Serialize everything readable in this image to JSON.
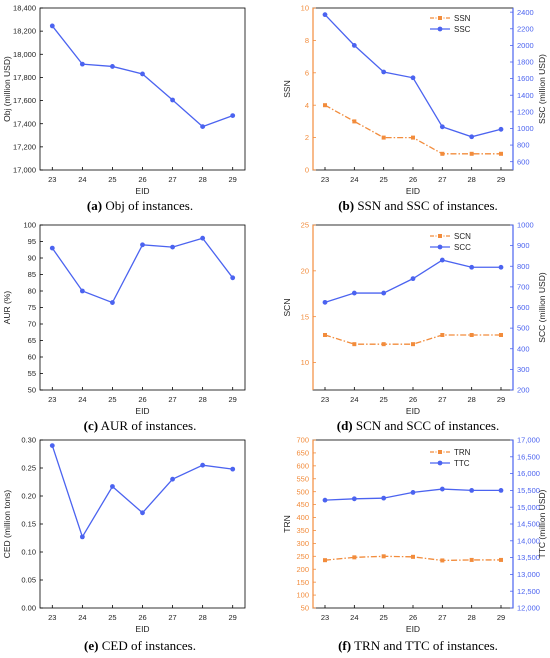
{
  "chart_data": [
    {
      "id": "a",
      "type": "line",
      "caption_label": "(a)",
      "caption_text": " Obj of instances.",
      "xlabel": "EID",
      "ylabel": "Obj (million USD)",
      "x": [
        23,
        24,
        25,
        26,
        27,
        28,
        29
      ],
      "ylim": [
        17000,
        18400
      ],
      "yticks": [
        17000,
        17200,
        17400,
        17600,
        17800,
        18000,
        18200,
        18400
      ],
      "ytick_labels": [
        "17,000",
        "17,200",
        "17,400",
        "17,600",
        "17,800",
        "18,000",
        "18,200",
        "18,400"
      ],
      "series": [
        {
          "axis": "left",
          "color": "#4b63f0",
          "style": "solid",
          "marker": "circle",
          "values": [
            18245,
            17915,
            17895,
            17830,
            17605,
            17375,
            17470
          ]
        }
      ]
    },
    {
      "id": "b",
      "type": "line",
      "caption_label": "(b)",
      "caption_text": " SSN and SSC of instances.",
      "xlabel": "EID",
      "ylabel": "SSN",
      "y2label": "SSC (million USD)",
      "x": [
        23,
        24,
        25,
        26,
        27,
        28,
        29
      ],
      "ylim": [
        0,
        10
      ],
      "yticks": [
        0,
        2,
        4,
        6,
        8,
        10
      ],
      "ytick_labels": [
        "0",
        "2",
        "4",
        "6",
        "8",
        "10"
      ],
      "y2lim": [
        500,
        2450
      ],
      "y2ticks": [
        600,
        800,
        1000,
        1200,
        1400,
        1600,
        1800,
        2000,
        2200,
        2400
      ],
      "y2tick_labels": [
        "600",
        "800",
        "1000",
        "1200",
        "1400",
        "1600",
        "1800",
        "2000",
        "2200",
        "2400"
      ],
      "legend_position": "top-right",
      "series": [
        {
          "name": "SSN",
          "axis": "left",
          "color": "#f28c3c",
          "style": "dashdot",
          "marker": "square",
          "values": [
            4,
            3,
            2,
            2,
            1,
            1,
            1
          ]
        },
        {
          "name": "SSC",
          "axis": "right",
          "color": "#4b63f0",
          "style": "solid",
          "marker": "circle",
          "values": [
            2370,
            2000,
            1680,
            1610,
            1020,
            900,
            990
          ]
        }
      ]
    },
    {
      "id": "c",
      "type": "line",
      "caption_label": "(c)",
      "caption_text": " AUR of instances.",
      "xlabel": "EID",
      "ylabel": "AUR (%)",
      "x": [
        23,
        24,
        25,
        26,
        27,
        28,
        29
      ],
      "ylim": [
        50,
        100
      ],
      "yticks": [
        50,
        55,
        60,
        65,
        70,
        75,
        80,
        85,
        90,
        95,
        100
      ],
      "ytick_labels": [
        "50",
        "55",
        "60",
        "65",
        "70",
        "75",
        "80",
        "85",
        "90",
        "95",
        "100"
      ],
      "series": [
        {
          "axis": "left",
          "color": "#4b63f0",
          "style": "solid",
          "marker": "circle",
          "values": [
            93,
            80,
            76.5,
            94,
            93.3,
            96,
            84
          ]
        }
      ]
    },
    {
      "id": "d",
      "type": "line",
      "caption_label": "(d)",
      "caption_text": " SCN and SCC of instances.",
      "xlabel": "EID",
      "ylabel": "SCN",
      "y2label": "SCC (million USD)",
      "x": [
        23,
        24,
        25,
        26,
        27,
        28,
        29
      ],
      "ylim": [
        7,
        25
      ],
      "yticks": [
        10,
        15,
        20,
        25
      ],
      "ytick_labels": [
        "10",
        "15",
        "20",
        "25"
      ],
      "y2lim": [
        200,
        1000
      ],
      "y2ticks": [
        200,
        300,
        400,
        500,
        600,
        700,
        800,
        900,
        1000
      ],
      "y2tick_labels": [
        "200",
        "300",
        "400",
        "500",
        "600",
        "700",
        "800",
        "900",
        "1000"
      ],
      "legend_position": "top-right",
      "series": [
        {
          "name": "SCN",
          "axis": "left",
          "color": "#f28c3c",
          "style": "dashdot",
          "marker": "square",
          "values": [
            13,
            12,
            12,
            12,
            13,
            13,
            13
          ]
        },
        {
          "name": "SCC",
          "axis": "right",
          "color": "#4b63f0",
          "style": "solid",
          "marker": "circle",
          "values": [
            625,
            670,
            670,
            740,
            830,
            795,
            795
          ]
        }
      ]
    },
    {
      "id": "e",
      "type": "line",
      "caption_label": "(e)",
      "caption_text": " CED of instances.",
      "xlabel": "EID",
      "ylabel": "CED (million tons)",
      "x": [
        23,
        24,
        25,
        26,
        27,
        28,
        29
      ],
      "ylim": [
        0,
        0.3
      ],
      "yticks": [
        0,
        0.05,
        0.1,
        0.15,
        0.2,
        0.25,
        0.3
      ],
      "ytick_labels": [
        "0.00",
        "0.05",
        "0.10",
        "0.15",
        "0.20",
        "0.25",
        "0.30"
      ],
      "series": [
        {
          "axis": "left",
          "color": "#4b63f0",
          "style": "solid",
          "marker": "circle",
          "values": [
            0.29,
            0.127,
            0.217,
            0.17,
            0.23,
            0.255,
            0.248
          ]
        }
      ]
    },
    {
      "id": "f",
      "type": "line",
      "caption_label": "(f)",
      "caption_text": " TRN and TTC of instances.",
      "xlabel": "EID",
      "ylabel": "TRN",
      "y2label": "TTC (million USD)",
      "x": [
        23,
        24,
        25,
        26,
        27,
        28,
        29
      ],
      "ylim": [
        50,
        700
      ],
      "yticks": [
        50,
        100,
        150,
        200,
        250,
        300,
        350,
        400,
        450,
        500,
        550,
        600,
        650,
        700
      ],
      "ytick_labels": [
        "50",
        "100",
        "150",
        "200",
        "250",
        "300",
        "350",
        "400",
        "450",
        "500",
        "550",
        "600",
        "650",
        "700"
      ],
      "y2lim": [
        12000,
        17000
      ],
      "y2ticks": [
        12000,
        12500,
        13000,
        13500,
        14000,
        14500,
        15000,
        15500,
        16000,
        16500,
        17000
      ],
      "y2tick_labels": [
        "12,000",
        "12,500",
        "13,000",
        "13,500",
        "14,000",
        "14,500",
        "15,000",
        "15,500",
        "16,000",
        "16,500",
        "17,000"
      ],
      "legend_position": "top-right",
      "series": [
        {
          "name": "TRN",
          "axis": "left",
          "color": "#f28c3c",
          "style": "dashdot",
          "marker": "square",
          "values": [
            235,
            246,
            250,
            248,
            234,
            236,
            236
          ]
        },
        {
          "name": "TTC",
          "axis": "right",
          "color": "#4b63f0",
          "style": "solid",
          "marker": "circle",
          "values": [
            15210,
            15250,
            15270,
            15440,
            15540,
            15500,
            15500
          ]
        }
      ]
    }
  ]
}
